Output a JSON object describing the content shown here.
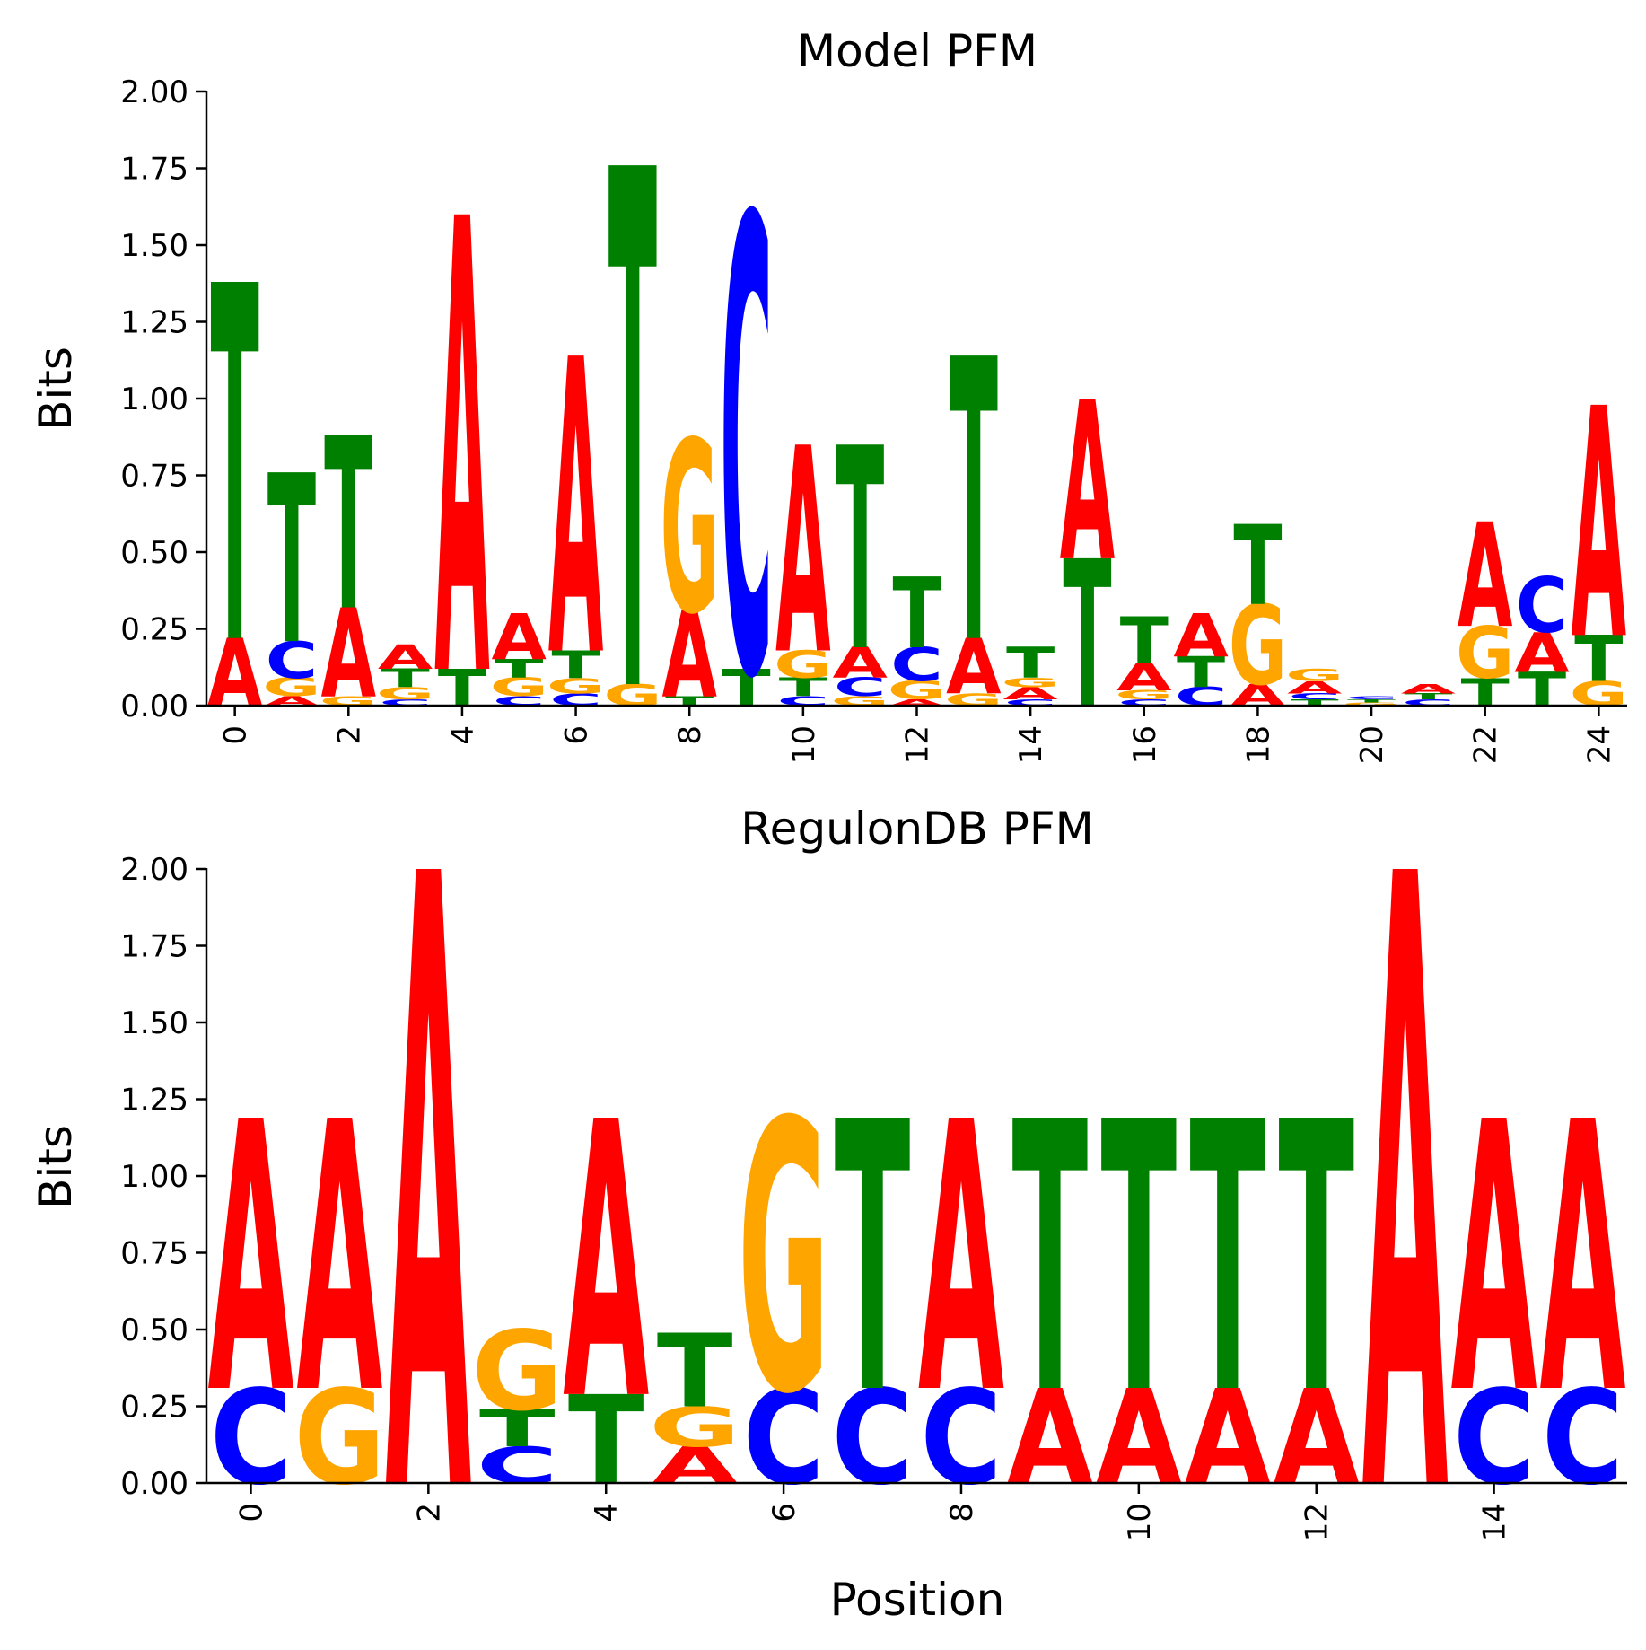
{
  "letter_colors": {
    "A": "#ff0000",
    "C": "#0000ff",
    "G": "#ffa500",
    "T": "#008000"
  },
  "axis_color": "#000000",
  "chart_data": [
    {
      "type": "sequence-logo",
      "title": "Model PFM",
      "ylabel": "Bits",
      "xlabel": "",
      "ylim": [
        0,
        2
      ],
      "yticks": [
        "0.00",
        "0.25",
        "0.50",
        "0.75",
        "1.00",
        "1.25",
        "1.50",
        "1.75",
        "2.00"
      ],
      "xticks": [
        "0",
        "2",
        "4",
        "6",
        "8",
        "10",
        "12",
        "14",
        "16",
        "18",
        "20",
        "22",
        "24"
      ],
      "grid": false,
      "positions": [
        {
          "pos": 0,
          "letters": [
            {
              "base": "A",
              "bits": 0.22
            },
            {
              "base": "T",
              "bits": 1.16
            }
          ]
        },
        {
          "pos": 1,
          "letters": [
            {
              "base": "A",
              "bits": 0.03
            },
            {
              "base": "G",
              "bits": 0.06
            },
            {
              "base": "C",
              "bits": 0.12
            },
            {
              "base": "T",
              "bits": 0.55
            }
          ]
        },
        {
          "pos": 2,
          "letters": [
            {
              "base": "G",
              "bits": 0.03
            },
            {
              "base": "A",
              "bits": 0.29
            },
            {
              "base": "T",
              "bits": 0.56
            }
          ]
        },
        {
          "pos": 3,
          "letters": [
            {
              "base": "C",
              "bits": 0.02
            },
            {
              "base": "G",
              "bits": 0.04
            },
            {
              "base": "T",
              "bits": 0.06
            },
            {
              "base": "A",
              "bits": 0.08
            }
          ]
        },
        {
          "pos": 4,
          "letters": [
            {
              "base": "T",
              "bits": 0.12
            },
            {
              "base": "A",
              "bits": 1.48
            }
          ]
        },
        {
          "pos": 5,
          "letters": [
            {
              "base": "C",
              "bits": 0.03
            },
            {
              "base": "G",
              "bits": 0.06
            },
            {
              "base": "T",
              "bits": 0.06
            },
            {
              "base": "A",
              "bits": 0.15
            }
          ]
        },
        {
          "pos": 6,
          "letters": [
            {
              "base": "C",
              "bits": 0.04
            },
            {
              "base": "G",
              "bits": 0.05
            },
            {
              "base": "T",
              "bits": 0.09
            },
            {
              "base": "A",
              "bits": 0.96
            }
          ]
        },
        {
          "pos": 7,
          "letters": [
            {
              "base": "G",
              "bits": 0.07
            },
            {
              "base": "T",
              "bits": 1.69
            }
          ]
        },
        {
          "pos": 8,
          "letters": [
            {
              "base": "T",
              "bits": 0.03
            },
            {
              "base": "A",
              "bits": 0.28
            },
            {
              "base": "G",
              "bits": 0.56
            }
          ]
        },
        {
          "pos": 9,
          "letters": [
            {
              "base": "T",
              "bits": 0.12
            },
            {
              "base": "C",
              "bits": 1.48
            }
          ]
        },
        {
          "pos": 10,
          "letters": [
            {
              "base": "C",
              "bits": 0.03
            },
            {
              "base": "T",
              "bits": 0.06
            },
            {
              "base": "G",
              "bits": 0.09
            },
            {
              "base": "A",
              "bits": 0.67
            }
          ]
        },
        {
          "pos": 11,
          "letters": [
            {
              "base": "G",
              "bits": 0.03
            },
            {
              "base": "C",
              "bits": 0.06
            },
            {
              "base": "A",
              "bits": 0.1
            },
            {
              "base": "T",
              "bits": 0.66
            }
          ]
        },
        {
          "pos": 12,
          "letters": [
            {
              "base": "A",
              "bits": 0.02
            },
            {
              "base": "G",
              "bits": 0.06
            },
            {
              "base": "C",
              "bits": 0.11
            },
            {
              "base": "T",
              "bits": 0.23
            }
          ]
        },
        {
          "pos": 13,
          "letters": [
            {
              "base": "G",
              "bits": 0.04
            },
            {
              "base": "A",
              "bits": 0.18
            },
            {
              "base": "T",
              "bits": 0.92
            }
          ]
        },
        {
          "pos": 14,
          "letters": [
            {
              "base": "C",
              "bits": 0.02
            },
            {
              "base": "A",
              "bits": 0.04
            },
            {
              "base": "G",
              "bits": 0.03
            },
            {
              "base": "T",
              "bits": 0.1
            }
          ]
        },
        {
          "pos": 15,
          "letters": [
            {
              "base": "T",
              "bits": 0.48
            },
            {
              "base": "A",
              "bits": 0.52
            }
          ]
        },
        {
          "pos": 16,
          "letters": [
            {
              "base": "C",
              "bits": 0.02
            },
            {
              "base": "G",
              "bits": 0.03
            },
            {
              "base": "A",
              "bits": 0.09
            },
            {
              "base": "T",
              "bits": 0.15
            }
          ]
        },
        {
          "pos": 17,
          "letters": [
            {
              "base": "C",
              "bits": 0.06
            },
            {
              "base": "T",
              "bits": 0.1
            },
            {
              "base": "A",
              "bits": 0.14
            }
          ]
        },
        {
          "pos": 18,
          "letters": [
            {
              "base": "A",
              "bits": 0.07
            },
            {
              "base": "G",
              "bits": 0.26
            },
            {
              "base": "T",
              "bits": 0.26
            }
          ]
        },
        {
          "pos": 19,
          "letters": [
            {
              "base": "T",
              "bits": 0.02
            },
            {
              "base": "C",
              "bits": 0.02
            },
            {
              "base": "A",
              "bits": 0.04
            },
            {
              "base": "G",
              "bits": 0.04
            }
          ]
        },
        {
          "pos": 20,
          "letters": [
            {
              "base": "G",
              "bits": 0.01
            },
            {
              "base": "T",
              "bits": 0.01
            },
            {
              "base": "C",
              "bits": 0.01
            }
          ]
        },
        {
          "pos": 21,
          "letters": [
            {
              "base": "C",
              "bits": 0.02
            },
            {
              "base": "T",
              "bits": 0.02
            },
            {
              "base": "A",
              "bits": 0.03
            }
          ]
        },
        {
          "pos": 22,
          "letters": [
            {
              "base": "T",
              "bits": 0.09
            },
            {
              "base": "G",
              "bits": 0.17
            },
            {
              "base": "A",
              "bits": 0.34
            }
          ]
        },
        {
          "pos": 23,
          "letters": [
            {
              "base": "T",
              "bits": 0.11
            },
            {
              "base": "A",
              "bits": 0.13
            },
            {
              "base": "C",
              "bits": 0.18
            }
          ]
        },
        {
          "pos": 24,
          "letters": [
            {
              "base": "G",
              "bits": 0.08
            },
            {
              "base": "T",
              "bits": 0.15
            },
            {
              "base": "A",
              "bits": 0.75
            }
          ]
        }
      ]
    },
    {
      "type": "sequence-logo",
      "title": "RegulonDB PFM",
      "ylabel": "Bits",
      "xlabel": "Position",
      "ylim": [
        0,
        2
      ],
      "yticks": [
        "0.00",
        "0.25",
        "0.50",
        "0.75",
        "1.00",
        "1.25",
        "1.50",
        "1.75",
        "2.00"
      ],
      "xticks": [
        "0",
        "2",
        "4",
        "6",
        "8",
        "10",
        "12",
        "14"
      ],
      "grid": false,
      "positions": [
        {
          "pos": 0,
          "letters": [
            {
              "base": "C",
              "bits": 0.31
            },
            {
              "base": "A",
              "bits": 0.88
            }
          ]
        },
        {
          "pos": 1,
          "letters": [
            {
              "base": "G",
              "bits": 0.31
            },
            {
              "base": "A",
              "bits": 0.88
            }
          ]
        },
        {
          "pos": 2,
          "letters": [
            {
              "base": "A",
              "bits": 2.0
            }
          ]
        },
        {
          "pos": 3,
          "letters": [
            {
              "base": "C",
              "bits": 0.12
            },
            {
              "base": "T",
              "bits": 0.12
            },
            {
              "base": "G",
              "bits": 0.26
            }
          ]
        },
        {
          "pos": 4,
          "letters": [
            {
              "base": "T",
              "bits": 0.29
            },
            {
              "base": "A",
              "bits": 0.9
            }
          ]
        },
        {
          "pos": 5,
          "letters": [
            {
              "base": "A",
              "bits": 0.12
            },
            {
              "base": "G",
              "bits": 0.13
            },
            {
              "base": "T",
              "bits": 0.24
            }
          ]
        },
        {
          "pos": 6,
          "letters": [
            {
              "base": "C",
              "bits": 0.31
            },
            {
              "base": "G",
              "bits": 0.88
            }
          ]
        },
        {
          "pos": 7,
          "letters": [
            {
              "base": "C",
              "bits": 0.31
            },
            {
              "base": "T",
              "bits": 0.88
            }
          ]
        },
        {
          "pos": 8,
          "letters": [
            {
              "base": "C",
              "bits": 0.31
            },
            {
              "base": "A",
              "bits": 0.88
            }
          ]
        },
        {
          "pos": 9,
          "letters": [
            {
              "base": "A",
              "bits": 0.31
            },
            {
              "base": "T",
              "bits": 0.88
            }
          ]
        },
        {
          "pos": 10,
          "letters": [
            {
              "base": "A",
              "bits": 0.31
            },
            {
              "base": "T",
              "bits": 0.88
            }
          ]
        },
        {
          "pos": 11,
          "letters": [
            {
              "base": "A",
              "bits": 0.31
            },
            {
              "base": "T",
              "bits": 0.88
            }
          ]
        },
        {
          "pos": 12,
          "letters": [
            {
              "base": "A",
              "bits": 0.31
            },
            {
              "base": "T",
              "bits": 0.88
            }
          ]
        },
        {
          "pos": 13,
          "letters": [
            {
              "base": "A",
              "bits": 2.0
            }
          ]
        },
        {
          "pos": 14,
          "letters": [
            {
              "base": "C",
              "bits": 0.31
            },
            {
              "base": "A",
              "bits": 0.88
            }
          ]
        },
        {
          "pos": 15,
          "letters": [
            {
              "base": "C",
              "bits": 0.31
            },
            {
              "base": "A",
              "bits": 0.88
            }
          ]
        }
      ]
    }
  ]
}
